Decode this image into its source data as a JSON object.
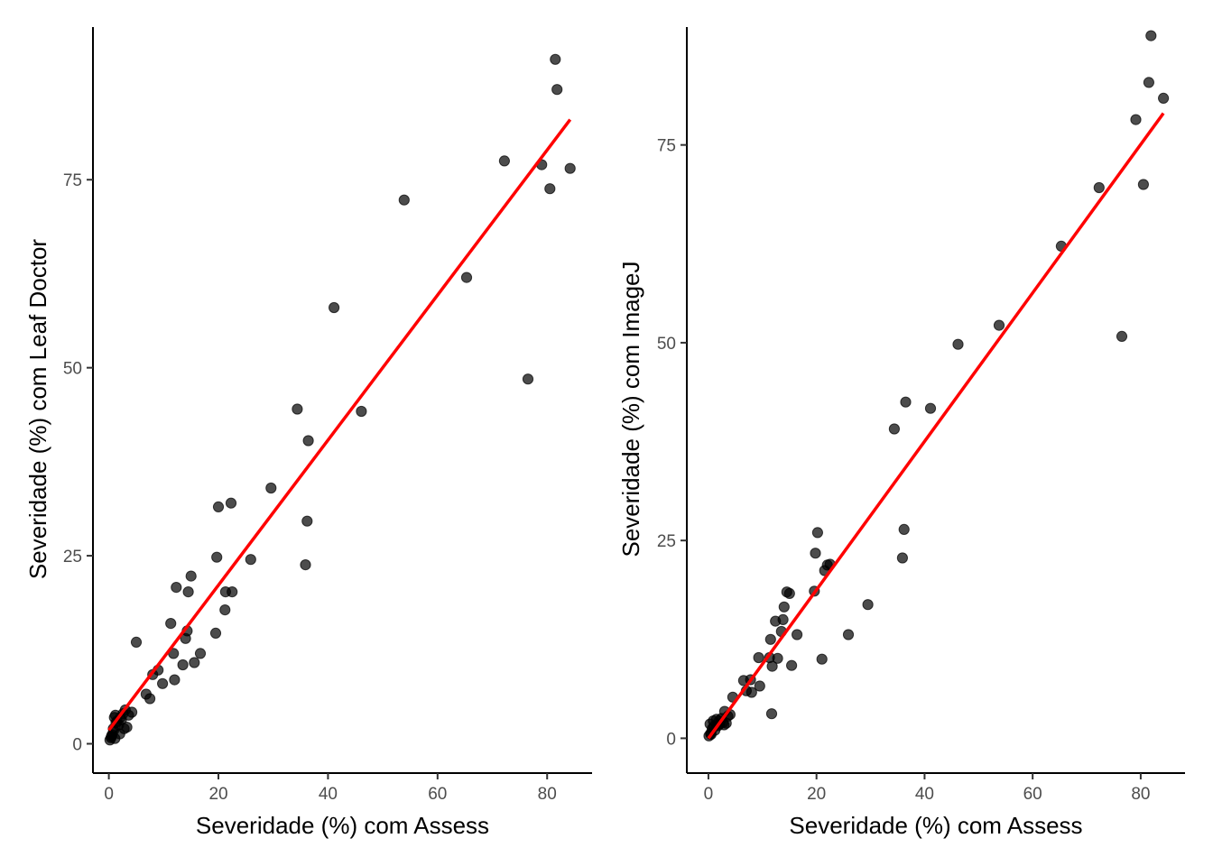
{
  "colors": {
    "points": "#000000",
    "fit_line": "#ff0000",
    "axis": "#000000",
    "tick_label": "#4d4d4d"
  },
  "chart_data": [
    {
      "type": "scatter",
      "xlabel": "Severidade (%) com Assess",
      "ylabel": "Severidade (%) com Leaf Doctor",
      "xlim": [
        -2.9,
        88.2
      ],
      "ylim": [
        -3.9,
        95.3
      ],
      "xticks": [
        "0",
        "20",
        "40",
        "60",
        "80"
      ],
      "yticks": [
        "0",
        "25",
        "50",
        "75"
      ],
      "grid": false,
      "fit_line": {
        "color": "#ff0000",
        "x": [
          0,
          84.2
        ],
        "y": [
          1.8,
          83.0
        ]
      },
      "series": [
        {
          "x": [
            0.2,
            0.4,
            0.6,
            0.8,
            1.0,
            1.2,
            1.5,
            1.8,
            2.0,
            2.3,
            2.6,
            3.0,
            3.3,
            3.6,
            4.2,
            0.5,
            1.1,
            2.1,
            0.9,
            1.3,
            2.8,
            5.0,
            6.8,
            7.5,
            8.0,
            9.0,
            9.8,
            11.3,
            11.8,
            12.0,
            12.3,
            13.5,
            14.0,
            14.3,
            14.5,
            15.0,
            15.6,
            16.7,
            19.5,
            19.7,
            20.0,
            21.2,
            21.3,
            22.3,
            22.5,
            25.9,
            29.6,
            34.4,
            35.9,
            36.2,
            36.4,
            41.1,
            46.1,
            53.9,
            65.3,
            72.2,
            76.5,
            79.0,
            80.5,
            81.5,
            81.8,
            84.2
          ],
          "y": [
            0.5,
            0.8,
            1.2,
            2.0,
            3.5,
            3.8,
            3.0,
            2.5,
            1.3,
            3.2,
            4.0,
            4.5,
            2.2,
            3.8,
            4.2,
            1.0,
            0.7,
            3.5,
            1.8,
            2.8,
            2.0,
            13.5,
            6.6,
            6.0,
            9.2,
            9.8,
            8.0,
            16.0,
            12.0,
            8.5,
            20.8,
            10.5,
            14.0,
            15.0,
            20.2,
            22.3,
            10.8,
            12.0,
            14.7,
            24.8,
            31.5,
            17.8,
            20.2,
            32.0,
            20.2,
            24.5,
            34.0,
            44.5,
            23.8,
            29.6,
            40.3,
            58.0,
            44.2,
            72.3,
            62.0,
            77.5,
            48.5,
            77.0,
            73.8,
            91.0,
            87.0,
            76.5
          ]
        }
      ]
    },
    {
      "type": "scatter",
      "xlabel": "Severidade (%) com Assess",
      "ylabel": "Severidade (%) com ImageJ",
      "xlim": [
        -4.0,
        88.2
      ],
      "ylim": [
        -4.4,
        89.9
      ],
      "xticks": [
        "0",
        "20",
        "40",
        "60",
        "80"
      ],
      "yticks": [
        "0",
        "25",
        "50",
        "75"
      ],
      "grid": false,
      "fit_line": {
        "color": "#ff0000",
        "x": [
          0,
          84.2
        ],
        "y": [
          0.0,
          79.0
        ]
      },
      "series": [
        {
          "x": [
            0.1,
            0.3,
            0.5,
            0.7,
            0.9,
            1.2,
            1.5,
            1.8,
            2.1,
            2.4,
            2.7,
            3.0,
            3.3,
            3.6,
            4.0,
            4.5,
            0.4,
            1.0,
            2.0,
            2.9,
            6.5,
            7.0,
            7.8,
            8.0,
            9.3,
            9.5,
            11.3,
            11.5,
            11.7,
            11.8,
            12.4,
            12.8,
            13.5,
            13.8,
            14.0,
            14.5,
            15.0,
            15.4,
            16.4,
            19.6,
            19.8,
            20.2,
            21.0,
            21.5,
            22.0,
            22.5,
            25.9,
            29.5,
            34.4,
            35.9,
            36.2,
            36.5,
            41.1,
            46.2,
            53.8,
            65.3,
            72.3,
            76.5,
            79.1,
            80.5,
            81.5,
            81.9,
            84.2
          ],
          "y": [
            0.3,
            1.8,
            0.5,
            1.2,
            2.2,
            1.0,
            2.4,
            1.6,
            1.8,
            2.5,
            2.0,
            3.4,
            1.9,
            2.8,
            3.0,
            5.2,
            0.6,
            1.5,
            2.2,
            1.7,
            7.3,
            6.0,
            7.4,
            5.8,
            10.2,
            6.6,
            10.2,
            12.5,
            3.1,
            9.1,
            14.8,
            10.1,
            13.5,
            15.0,
            16.6,
            18.5,
            18.3,
            9.2,
            13.1,
            18.6,
            23.4,
            26.0,
            10.0,
            21.2,
            21.9,
            22.0,
            13.1,
            16.9,
            39.1,
            22.8,
            26.4,
            42.5,
            41.7,
            49.8,
            52.2,
            62.2,
            69.6,
            50.8,
            78.2,
            70.0,
            82.9,
            88.8,
            80.9
          ]
        }
      ]
    }
  ]
}
